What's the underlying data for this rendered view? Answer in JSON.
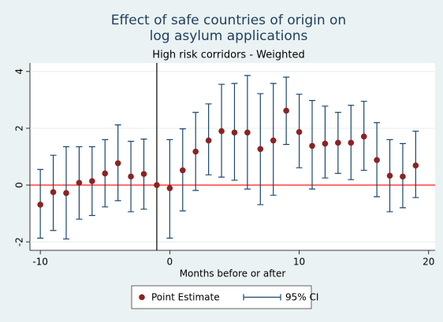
{
  "chart_data": {
    "type": "scatter",
    "title": [
      "Effect of safe countries of origin on",
      "log asylum applications"
    ],
    "subtitle": "High risk corridors - Weighted",
    "x_label": "Months before or after",
    "x": [
      -10,
      -9,
      -8,
      -7,
      -6,
      -5,
      -4,
      -3,
      -2,
      -1,
      0,
      1,
      2,
      3,
      4,
      5,
      6,
      7,
      8,
      9,
      10,
      11,
      12,
      13,
      14,
      15,
      16,
      17,
      18,
      19
    ],
    "series": [
      {
        "name": "Point Estimate",
        "color": "#8b2323",
        "values": [
          -0.69,
          -0.25,
          -0.28,
          0.08,
          0.14,
          0.41,
          0.77,
          0.3,
          0.39,
          0,
          -0.11,
          0.52,
          1.18,
          1.57,
          1.9,
          1.85,
          1.85,
          1.27,
          1.57,
          2.62,
          1.87,
          1.38,
          1.46,
          1.49,
          1.49,
          1.71,
          0.88,
          0.33,
          0.3,
          0.69
        ]
      }
    ],
    "ci": {
      "name": "95% CI",
      "color": "#1a476f",
      "lower": [
        -1.87,
        -1.6,
        -1.9,
        -1.2,
        -1.07,
        -0.77,
        -0.55,
        -0.94,
        -0.85,
        null,
        -1.87,
        -0.91,
        -0.19,
        0.36,
        0.28,
        0.17,
        -0.14,
        -0.69,
        -0.36,
        1.43,
        0.61,
        -0.14,
        0.25,
        0.41,
        0.19,
        0.52,
        -0.41,
        -0.94,
        -0.8,
        -0.44
      ],
      "upper": [
        0.55,
        1.05,
        1.35,
        1.35,
        1.35,
        1.6,
        2.12,
        1.54,
        1.62,
        null,
        1.6,
        1.98,
        2.56,
        2.86,
        3.55,
        3.58,
        3.86,
        3.22,
        3.58,
        3.8,
        3.2,
        2.98,
        2.78,
        2.56,
        2.81,
        2.95,
        2.2,
        1.6,
        1.46,
        1.9
      ]
    },
    "xline": {
      "value": -1,
      "color": "#000000"
    },
    "yline": {
      "value": 0,
      "color": "#ff0000"
    },
    "xlim": [
      -10.8,
      20.5
    ],
    "ylim": [
      -2.3,
      4.3
    ],
    "xticks": [
      -10,
      0,
      10,
      20
    ],
    "yticks": [
      -2,
      0,
      2,
      4
    ],
    "grid": true,
    "legend": "bottom"
  }
}
